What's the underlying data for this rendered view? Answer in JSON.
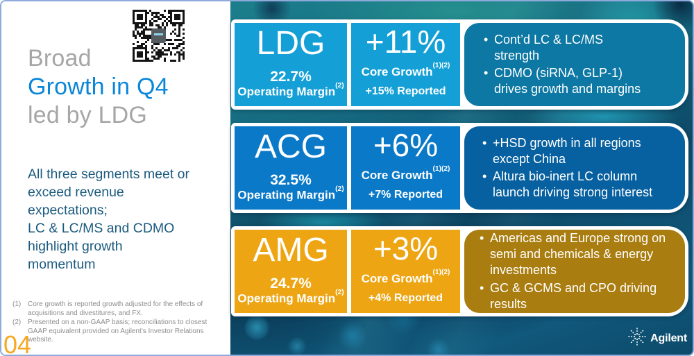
{
  "slide": {
    "page_number": "04",
    "page_number_color": "#f6a821",
    "border_color": "#8eaadb"
  },
  "left_panel": {
    "title": {
      "line1": "Broad",
      "line2": "Growth in Q4",
      "line3": "led by LDG",
      "gray_color": "#a6a6a6",
      "blue_color": "#0a86d8"
    },
    "subtitle_paragraphs": [
      "All three segments meet or exceed revenue expectations;",
      "LC & LC/MS and CDMO highlight growth momentum"
    ],
    "subtitle_color": "#1b5a7e",
    "footnote_color": "#8c8c8c",
    "footnotes": [
      {
        "num": "(1)",
        "text": "Core growth is reported growth adjusted for the effects of acquisitions and divestitures, and FX."
      },
      {
        "num": "(2)",
        "text": "Presented on a non-GAAP basis; reconciliations to closest GAAP equivalent provided on Agilent's Investor Relations website."
      }
    ]
  },
  "segments": [
    {
      "name": "LDG",
      "operating_margin_value": "22.7%",
      "operating_margin_label": "Operating Margin",
      "operating_margin_sup": "(2)",
      "core_growth_value": "+11%",
      "core_growth_label": "Core Growth",
      "core_growth_sup": "(1)(2)",
      "reported": "+15% Reported",
      "bullets": [
        "Cont’d LC & LC/MS strength",
        "CDMO (siRNA, GLP-1) drives growth and margins"
      ],
      "colors": {
        "box": "#14a0d7",
        "panel": "#0d78a4"
      }
    },
    {
      "name": "ACG",
      "operating_margin_value": "32.5%",
      "operating_margin_label": "Operating Margin",
      "operating_margin_sup": "(2)",
      "core_growth_value": "+6%",
      "core_growth_label": "Core Growth",
      "core_growth_sup": "(1)(2)",
      "reported": "+7% Reported",
      "bullets": [
        "+HSD growth in all regions except China",
        "Altura bio-inert LC column launch driving strong interest"
      ],
      "colors": {
        "box": "#0a79c8",
        "panel": "#07609f"
      }
    },
    {
      "name": "AMG",
      "operating_margin_value": "24.7%",
      "operating_margin_label": "Operating Margin",
      "operating_margin_sup": "(2)",
      "core_growth_value": "+3%",
      "core_growth_label": "Core Growth",
      "core_growth_sup": "(1)(2)",
      "reported": "+4% Reported",
      "bullets": [
        "Americas and Europe strong on semi and chemicals & energy investments",
        "GC & GCMS and CPO driving results"
      ],
      "colors": {
        "box": "#eda513",
        "panel": "#a97d10"
      }
    }
  ],
  "logo": {
    "text": "Agilent"
  }
}
